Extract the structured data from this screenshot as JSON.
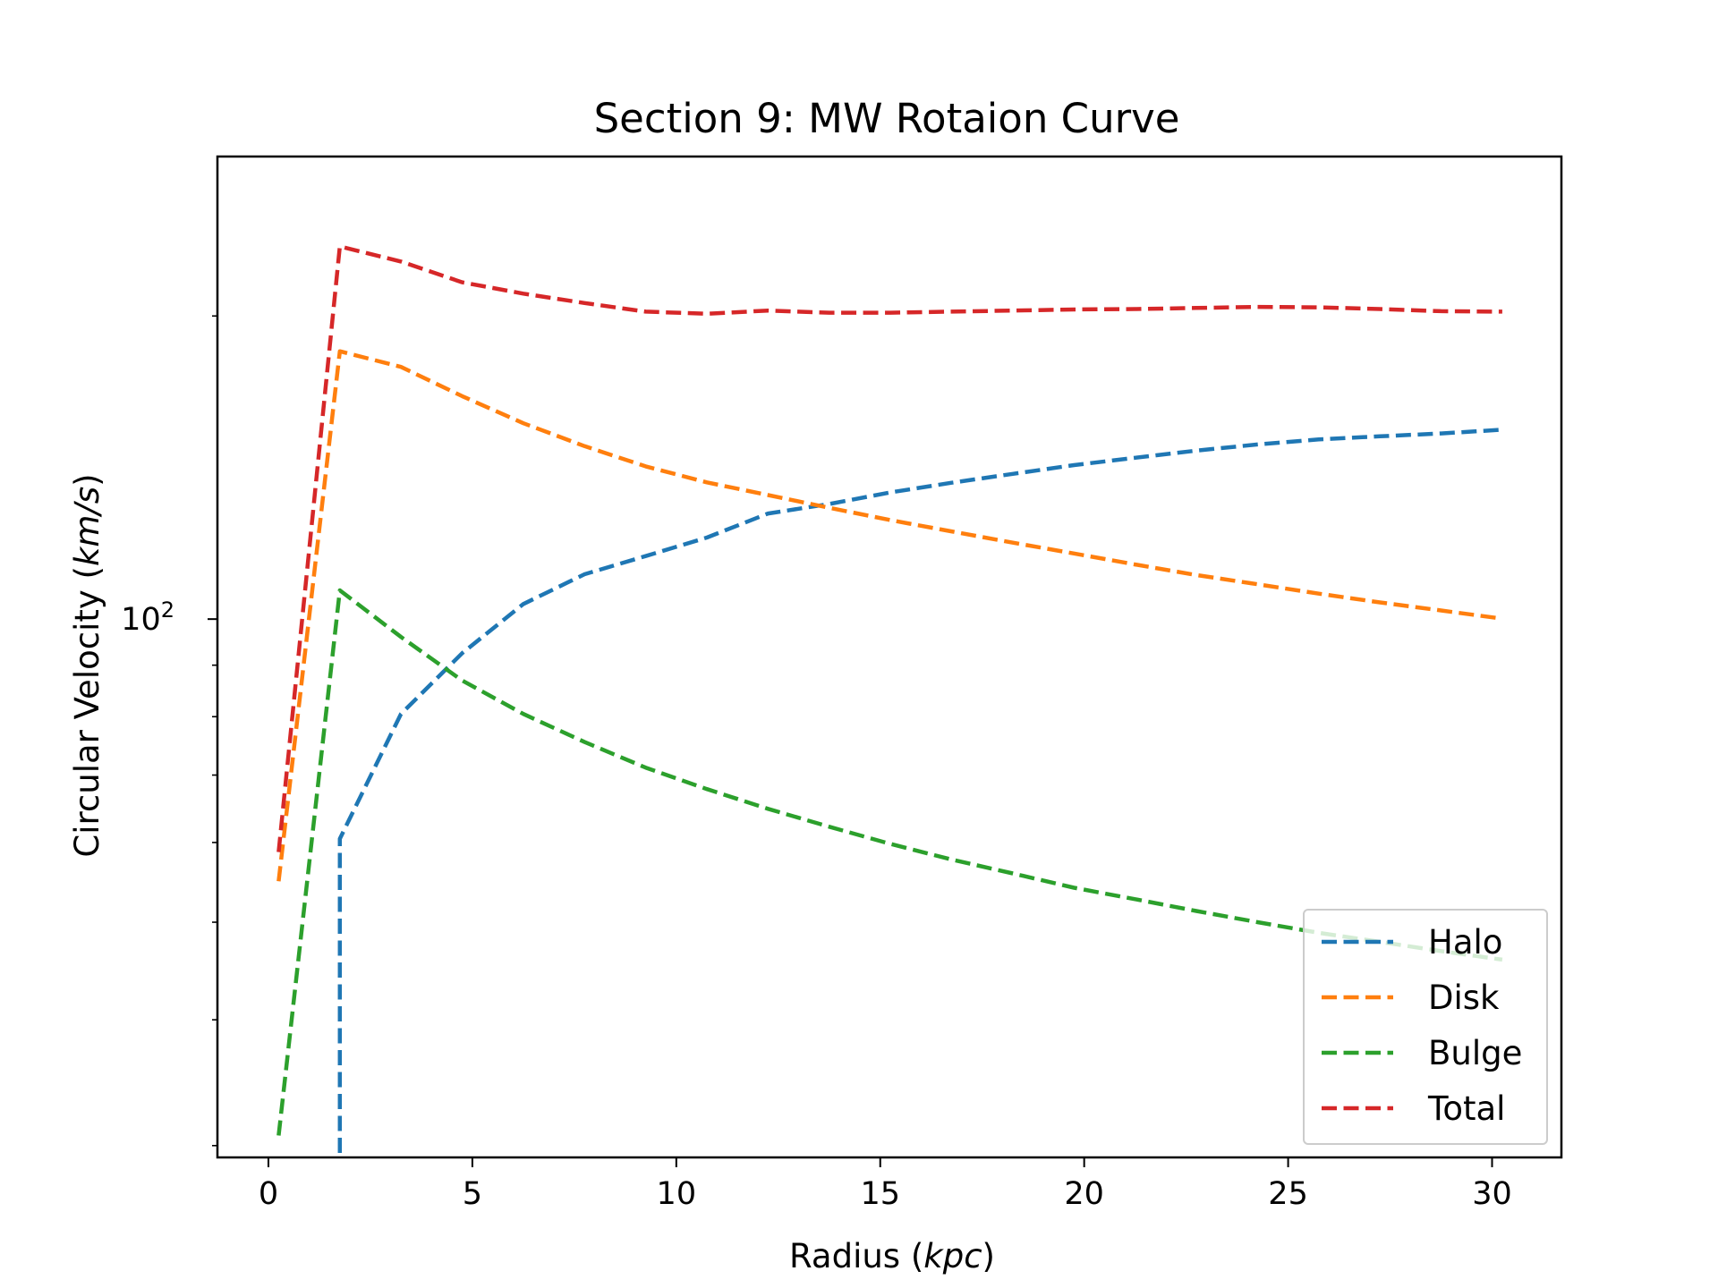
{
  "chart_data": {
    "type": "line",
    "title": "Section 9: MW Rotaion Curve",
    "xlabel": "Radius (kpc)",
    "xlabel_prefix": "Radius (",
    "xlabel_unit": "kpc",
    "xlabel_suffix": ")",
    "ylabel": "Circular Velocity (km/s)",
    "ylabel_prefix": "Circular Velocity (",
    "ylabel_unit": "km/s",
    "ylabel_suffix": ")",
    "xlim": [
      -1.25,
      31.7
    ],
    "ylim": [
      29.2,
      288
    ],
    "yscale": "log",
    "xticks": [
      0,
      5,
      10,
      15,
      20,
      25,
      30
    ],
    "xtick_labels": [
      "0",
      "5",
      "10",
      "15",
      "20",
      "25",
      "30"
    ],
    "yticks_major": [
      100
    ],
    "ytick_major_labels": [
      {
        "base": "10",
        "exp": "2"
      }
    ],
    "yticks_minor": [
      30,
      40,
      50,
      60,
      70,
      80,
      90,
      200
    ],
    "grid": false,
    "legend_position": "lower right",
    "series": [
      {
        "name": "Halo",
        "color": "#1f77b4",
        "x": [
          1.75,
          1.75,
          3.25,
          4.75,
          6.25,
          7.75,
          9.25,
          10.75,
          12.25,
          13.75,
          15.25,
          16.75,
          18.25,
          19.75,
          21.25,
          22.75,
          24.25,
          25.75,
          27.25,
          28.75,
          30.25
        ],
        "y": [
          29.5,
          60.5,
          80.5,
          92.5,
          103.5,
          110.8,
          115.5,
          120.5,
          127.3,
          130.1,
          133.6,
          136.6,
          139.4,
          142.2,
          144.6,
          147.0,
          149.1,
          150.8,
          151.9,
          152.9,
          154.2
        ]
      },
      {
        "name": "Disk",
        "color": "#ff7f0e",
        "x": [
          0.25,
          1.75,
          3.25,
          4.75,
          6.25,
          7.75,
          9.25,
          10.75,
          12.25,
          13.75,
          15.25,
          16.75,
          18.25,
          19.75,
          21.25,
          22.75,
          24.25,
          25.75,
          27.25,
          28.75,
          30.25
        ],
        "y": [
          54.9,
          184.5,
          178.0,
          166.5,
          156.5,
          148.5,
          141.8,
          136.7,
          132.8,
          129.0,
          125.4,
          122.2,
          119.1,
          116.2,
          113.3,
          110.6,
          108.3,
          106.0,
          103.9,
          102.0,
          100.1
        ]
      },
      {
        "name": "Bulge",
        "color": "#2ca02c",
        "x": [
          0.25,
          1.75,
          3.25,
          4.75,
          6.25,
          7.75,
          9.25,
          10.75,
          12.25,
          13.75,
          15.25,
          16.75,
          18.25,
          19.75,
          21.25,
          22.75,
          24.25,
          25.75,
          27.25,
          28.75,
          30.25
        ],
        "y": [
          30.7,
          106.8,
          96.0,
          86.9,
          80.5,
          75.5,
          71.2,
          67.8,
          64.8,
          62.2,
          59.8,
          57.7,
          55.9,
          54.1,
          52.7,
          51.3,
          50.0,
          48.8,
          47.8,
          46.8,
          45.9
        ]
      },
      {
        "name": "Total",
        "color": "#d62728",
        "x": [
          0.25,
          1.75,
          3.25,
          4.75,
          6.25,
          7.75,
          9.25,
          10.75,
          12.25,
          13.75,
          15.25,
          16.75,
          18.25,
          19.75,
          21.25,
          22.75,
          24.25,
          25.75,
          27.25,
          28.75,
          30.25
        ],
        "y": [
          58.7,
          234.5,
          226.5,
          216.0,
          210.5,
          206.0,
          202.0,
          201.0,
          202.5,
          201.5,
          201.5,
          202.0,
          202.5,
          203.0,
          203.2,
          203.7,
          204.2,
          204.0,
          203.2,
          202.2,
          202.0
        ]
      }
    ]
  }
}
